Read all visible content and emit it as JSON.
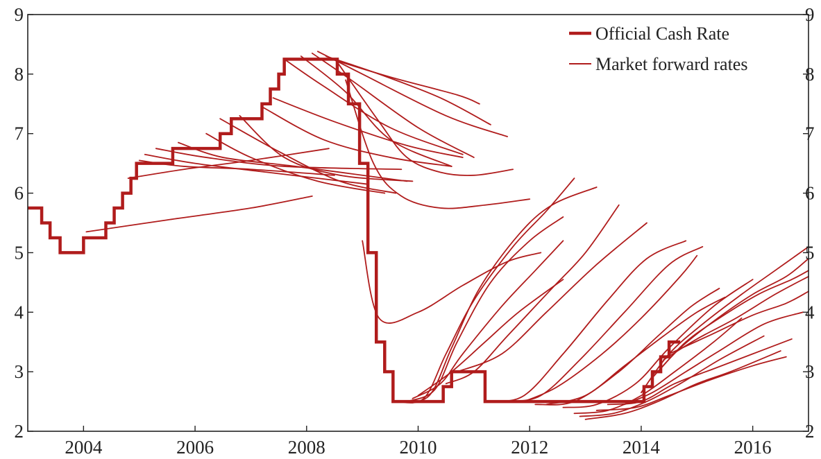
{
  "chart_data": {
    "type": "line",
    "title": "",
    "xlabel": "",
    "ylabel": "",
    "xlim": [
      2003.0,
      2017.0
    ],
    "ylim": [
      2,
      9
    ],
    "x_ticks": [
      2004,
      2006,
      2008,
      2010,
      2012,
      2014,
      2016
    ],
    "x_tick_labels": [
      "2004",
      "2006",
      "2008",
      "2010",
      "2012",
      "2014",
      "2016"
    ],
    "y_ticks": [
      2,
      3,
      4,
      5,
      6,
      7,
      8,
      9
    ],
    "y_tick_labels": [
      "2",
      "3",
      "4",
      "5",
      "6",
      "7",
      "8",
      "9"
    ],
    "right_axis_duplicate": true,
    "grid": false,
    "legend_position": "top-right",
    "legend": [
      "Official Cash Rate",
      "Market forward rates"
    ],
    "colors": {
      "series": "#b01c1c",
      "axis": "#222222"
    },
    "series": [
      {
        "name": "Official Cash Rate",
        "style": "step",
        "points": [
          [
            2003.0,
            5.75
          ],
          [
            2003.25,
            5.5
          ],
          [
            2003.4,
            5.25
          ],
          [
            2003.58,
            5.0
          ],
          [
            2004.0,
            5.25
          ],
          [
            2004.4,
            5.5
          ],
          [
            2004.55,
            5.75
          ],
          [
            2004.7,
            6.0
          ],
          [
            2004.85,
            6.25
          ],
          [
            2004.95,
            6.5
          ],
          [
            2005.6,
            6.75
          ],
          [
            2006.45,
            7.0
          ],
          [
            2006.65,
            7.25
          ],
          [
            2007.2,
            7.5
          ],
          [
            2007.35,
            7.75
          ],
          [
            2007.5,
            8.0
          ],
          [
            2007.6,
            8.25
          ],
          [
            2008.55,
            8.0
          ],
          [
            2008.75,
            7.5
          ],
          [
            2008.95,
            6.5
          ],
          [
            2009.1,
            5.0
          ],
          [
            2009.25,
            3.5
          ],
          [
            2009.4,
            3.0
          ],
          [
            2009.55,
            2.5
          ],
          [
            2010.45,
            2.75
          ],
          [
            2010.6,
            3.0
          ],
          [
            2011.2,
            2.5
          ],
          [
            2014.05,
            2.75
          ],
          [
            2014.2,
            3.0
          ],
          [
            2014.35,
            3.25
          ],
          [
            2014.5,
            3.5
          ],
          [
            2014.7,
            3.5
          ]
        ]
      },
      {
        "name": "Market forward rates",
        "style": "curves",
        "curves": [
          [
            [
              2004.05,
              5.35
            ],
            [
              2005.5,
              5.55
            ],
            [
              2007.0,
              5.75
            ],
            [
              2008.1,
              5.95
            ]
          ],
          [
            [
              2004.8,
              6.25
            ],
            [
              2005.8,
              6.4
            ],
            [
              2007.0,
              6.55
            ],
            [
              2008.4,
              6.75
            ]
          ],
          [
            [
              2005.0,
              6.55
            ],
            [
              2005.8,
              6.45
            ],
            [
              2007.0,
              6.4
            ],
            [
              2008.5,
              6.3
            ]
          ],
          [
            [
              2005.1,
              6.65
            ],
            [
              2006.0,
              6.5
            ],
            [
              2007.3,
              6.35
            ],
            [
              2009.1,
              6.15
            ]
          ],
          [
            [
              2005.3,
              6.75
            ],
            [
              2006.2,
              6.6
            ],
            [
              2007.6,
              6.45
            ],
            [
              2009.7,
              6.4
            ]
          ],
          [
            [
              2005.7,
              6.85
            ],
            [
              2006.5,
              6.6
            ],
            [
              2007.8,
              6.45
            ],
            [
              2009.8,
              6.2
            ]
          ],
          [
            [
              2006.2,
              7.0
            ],
            [
              2007.0,
              6.6
            ],
            [
              2008.2,
              6.2
            ],
            [
              2009.4,
              6.0
            ]
          ],
          [
            [
              2006.45,
              7.25
            ],
            [
              2007.5,
              6.7
            ],
            [
              2008.6,
              6.2
            ],
            [
              2009.6,
              6.0
            ]
          ],
          [
            [
              2006.8,
              7.3
            ],
            [
              2007.6,
              6.6
            ],
            [
              2008.6,
              6.3
            ],
            [
              2009.9,
              6.2
            ]
          ],
          [
            [
              2007.2,
              7.45
            ],
            [
              2008.3,
              6.9
            ],
            [
              2009.5,
              6.6
            ],
            [
              2010.6,
              6.45
            ]
          ],
          [
            [
              2007.4,
              7.6
            ],
            [
              2008.5,
              7.2
            ],
            [
              2009.8,
              6.8
            ],
            [
              2010.8,
              6.6
            ]
          ],
          [
            [
              2007.6,
              8.25
            ],
            [
              2008.3,
              7.8
            ],
            [
              2009.5,
              7.1
            ],
            [
              2010.8,
              6.65
            ]
          ],
          [
            [
              2007.9,
              8.3
            ],
            [
              2008.7,
              7.7
            ],
            [
              2009.5,
              6.9
            ],
            [
              2010.6,
              6.45
            ]
          ],
          [
            [
              2008.1,
              8.35
            ],
            [
              2008.8,
              7.9
            ],
            [
              2010.0,
              7.1
            ],
            [
              2011.0,
              6.6
            ]
          ],
          [
            [
              2008.2,
              8.38
            ],
            [
              2009.0,
              8.0
            ],
            [
              2010.5,
              7.3
            ],
            [
              2011.6,
              6.95
            ]
          ],
          [
            [
              2008.35,
              8.3
            ],
            [
              2009.3,
              8.0
            ],
            [
              2010.4,
              7.6
            ],
            [
              2011.3,
              7.15
            ]
          ],
          [
            [
              2008.45,
              8.25
            ],
            [
              2009.5,
              7.95
            ],
            [
              2010.7,
              7.65
            ],
            [
              2011.1,
              7.5
            ]
          ],
          [
            [
              2008.55,
              8.2
            ],
            [
              2009.3,
              7.2
            ],
            [
              2009.8,
              6.6
            ],
            [
              2010.4,
              6.35
            ],
            [
              2011.0,
              6.3
            ],
            [
              2011.7,
              6.4
            ]
          ],
          [
            [
              2008.7,
              7.9
            ],
            [
              2009.2,
              6.5
            ],
            [
              2009.7,
              5.95
            ],
            [
              2010.4,
              5.75
            ],
            [
              2011.2,
              5.8
            ],
            [
              2012.0,
              5.9
            ]
          ],
          [
            [
              2009.0,
              5.2
            ],
            [
              2009.3,
              3.9
            ],
            [
              2010.0,
              4.0
            ],
            [
              2010.8,
              4.45
            ],
            [
              2011.6,
              4.85
            ],
            [
              2012.2,
              5.0
            ]
          ],
          [
            [
              2009.6,
              2.5
            ],
            [
              2010.1,
              2.55
            ],
            [
              2010.5,
              3.3
            ],
            [
              2011.0,
              4.2
            ],
            [
              2011.7,
              5.1
            ],
            [
              2012.3,
              5.7
            ],
            [
              2012.8,
              6.25
            ]
          ],
          [
            [
              2009.7,
              2.5
            ],
            [
              2010.2,
              2.6
            ],
            [
              2010.6,
              3.4
            ],
            [
              2011.1,
              4.4
            ],
            [
              2011.8,
              5.3
            ],
            [
              2012.4,
              5.8
            ],
            [
              2013.2,
              6.1
            ]
          ],
          [
            [
              2009.8,
              2.5
            ],
            [
              2010.3,
              2.7
            ],
            [
              2010.7,
              3.5
            ],
            [
              2011.3,
              4.5
            ],
            [
              2012.0,
              5.2
            ],
            [
              2012.6,
              5.6
            ]
          ],
          [
            [
              2009.9,
              2.55
            ],
            [
              2010.4,
              2.8
            ],
            [
              2010.8,
              3.3
            ],
            [
              2011.5,
              4.1
            ],
            [
              2012.1,
              4.7
            ],
            [
              2012.6,
              5.2
            ]
          ],
          [
            [
              2010.0,
              2.6
            ],
            [
              2010.6,
              3.0
            ],
            [
              2011.2,
              3.5
            ],
            [
              2011.8,
              4.0
            ],
            [
              2012.6,
              4.55
            ]
          ],
          [
            [
              2010.5,
              2.8
            ],
            [
              2011.0,
              3.0
            ],
            [
              2011.6,
              3.6
            ],
            [
              2012.4,
              4.4
            ],
            [
              2013.0,
              5.0
            ],
            [
              2013.6,
              5.8
            ]
          ],
          [
            [
              2010.7,
              3.0
            ],
            [
              2011.5,
              3.3
            ],
            [
              2012.3,
              4.0
            ],
            [
              2013.2,
              4.8
            ],
            [
              2014.1,
              5.5
            ]
          ],
          [
            [
              2011.3,
              2.5
            ],
            [
              2011.9,
              2.6
            ],
            [
              2012.6,
              3.3
            ],
            [
              2013.4,
              4.2
            ],
            [
              2014.1,
              4.9
            ],
            [
              2014.8,
              5.2
            ]
          ],
          [
            [
              2011.6,
              2.5
            ],
            [
              2012.2,
              2.6
            ],
            [
              2012.9,
              3.2
            ],
            [
              2013.7,
              4.0
            ],
            [
              2014.5,
              4.8
            ],
            [
              2015.1,
              5.1
            ]
          ],
          [
            [
              2011.9,
              2.5
            ],
            [
              2012.5,
              2.75
            ],
            [
              2013.3,
              3.3
            ],
            [
              2014.0,
              3.9
            ],
            [
              2014.7,
              4.6
            ],
            [
              2015.0,
              4.95
            ]
          ],
          [
            [
              2012.1,
              2.45
            ],
            [
              2012.8,
              2.5
            ],
            [
              2013.6,
              3.0
            ],
            [
              2014.3,
              3.6
            ],
            [
              2014.9,
              4.1
            ],
            [
              2015.4,
              4.4
            ]
          ],
          [
            [
              2012.3,
              2.45
            ],
            [
              2013.0,
              2.6
            ],
            [
              2013.7,
              3.1
            ],
            [
              2014.4,
              3.6
            ],
            [
              2015.0,
              4.0
            ],
            [
              2015.5,
              4.25
            ]
          ],
          [
            [
              2012.6,
              2.4
            ],
            [
              2013.2,
              2.45
            ],
            [
              2013.9,
              2.8
            ],
            [
              2014.5,
              3.4
            ],
            [
              2015.3,
              4.1
            ],
            [
              2016.0,
              4.55
            ]
          ],
          [
            [
              2012.8,
              2.3
            ],
            [
              2013.4,
              2.35
            ],
            [
              2014.0,
              2.6
            ],
            [
              2014.6,
              3.0
            ],
            [
              2015.3,
              3.5
            ],
            [
              2015.8,
              3.9
            ]
          ],
          [
            [
              2012.9,
              2.25
            ],
            [
              2013.5,
              2.3
            ],
            [
              2014.1,
              2.5
            ],
            [
              2014.7,
              2.8
            ],
            [
              2015.4,
              3.2
            ],
            [
              2016.2,
              3.6
            ]
          ],
          [
            [
              2013.0,
              2.2
            ],
            [
              2013.7,
              2.3
            ],
            [
              2014.3,
              2.5
            ],
            [
              2015.0,
              2.8
            ],
            [
              2015.6,
              3.0
            ],
            [
              2016.5,
              3.35
            ]
          ],
          [
            [
              2013.2,
              2.35
            ],
            [
              2013.9,
              2.4
            ],
            [
              2014.5,
              2.6
            ],
            [
              2015.2,
              2.85
            ],
            [
              2016.0,
              3.1
            ],
            [
              2016.6,
              3.25
            ]
          ],
          [
            [
              2013.4,
              2.45
            ],
            [
              2014.0,
              2.5
            ],
            [
              2014.6,
              2.8
            ],
            [
              2015.3,
              3.05
            ],
            [
              2016.0,
              3.3
            ],
            [
              2016.7,
              3.55
            ]
          ],
          [
            [
              2013.7,
              2.45
            ],
            [
              2014.2,
              2.65
            ],
            [
              2014.8,
              3.0
            ],
            [
              2015.4,
              3.35
            ],
            [
              2016.2,
              3.8
            ],
            [
              2016.9,
              4.0
            ]
          ],
          [
            [
              2014.0,
              2.65
            ],
            [
              2014.5,
              3.3
            ],
            [
              2015.1,
              3.8
            ],
            [
              2015.8,
              4.3
            ],
            [
              2016.4,
              4.7
            ],
            [
              2017.0,
              5.1
            ]
          ],
          [
            [
              2014.2,
              2.9
            ],
            [
              2014.7,
              3.4
            ],
            [
              2015.3,
              3.85
            ],
            [
              2016.0,
              4.3
            ],
            [
              2016.6,
              4.6
            ],
            [
              2017.0,
              4.9
            ]
          ],
          [
            [
              2014.3,
              3.0
            ],
            [
              2014.8,
              3.5
            ],
            [
              2015.4,
              3.9
            ],
            [
              2016.1,
              4.3
            ],
            [
              2016.7,
              4.55
            ],
            [
              2017.0,
              4.7
            ]
          ],
          [
            [
              2014.4,
              3.2
            ],
            [
              2015.0,
              3.55
            ],
            [
              2015.7,
              3.9
            ],
            [
              2016.4,
              4.3
            ],
            [
              2017.0,
              4.6
            ]
          ],
          [
            [
              2014.5,
              3.3
            ],
            [
              2015.2,
              3.6
            ],
            [
              2016.0,
              3.95
            ],
            [
              2016.6,
              4.15
            ],
            [
              2017.0,
              4.35
            ]
          ]
        ]
      }
    ]
  }
}
